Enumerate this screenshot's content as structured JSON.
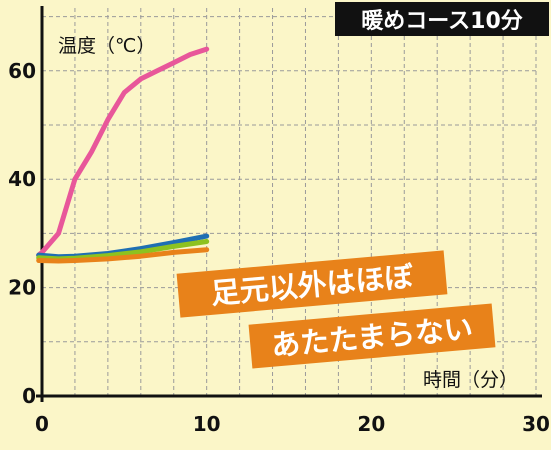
{
  "title": "暖めコース10分",
  "callout": {
    "line1": "足元以外はほぼ",
    "line2": "あたたまらない"
  },
  "colors": {
    "background": "#fbf6c8",
    "title_bg": "#111111",
    "callout_bg": "#e8821a",
    "grid": "#9a9a9a"
  },
  "chart_data": {
    "type": "line",
    "title": "暖めコース10分",
    "xlabel": "時間（分）",
    "ylabel": "温度（℃）",
    "xlim": [
      0,
      30
    ],
    "ylim": [
      0,
      70
    ],
    "x_ticks": [
      "0",
      "10",
      "20",
      "30"
    ],
    "y_ticks": [
      "0",
      "20",
      "40",
      "60"
    ],
    "grid": true,
    "series": [
      {
        "color": "#e8579a",
        "points": [
          [
            -0.2,
            26
          ],
          [
            0,
            26.5
          ],
          [
            1,
            30
          ],
          [
            2,
            40
          ],
          [
            3,
            45
          ],
          [
            4,
            51
          ],
          [
            5,
            56
          ],
          [
            6,
            58.5
          ],
          [
            7,
            60
          ],
          [
            8,
            61.5
          ],
          [
            9,
            63
          ],
          [
            10,
            64
          ]
        ]
      },
      {
        "color": "#1f6fb3",
        "points": [
          [
            -0.2,
            26
          ],
          [
            1,
            25.7
          ],
          [
            2,
            25.8
          ],
          [
            4,
            26.3
          ],
          [
            6,
            27.2
          ],
          [
            8,
            28.3
          ],
          [
            10,
            29.5
          ]
        ]
      },
      {
        "color": "#8dc21f",
        "points": [
          [
            -0.2,
            25.5
          ],
          [
            1,
            25.3
          ],
          [
            2,
            25.4
          ],
          [
            4,
            25.9
          ],
          [
            6,
            26.6
          ],
          [
            8,
            27.6
          ],
          [
            10,
            28.5
          ]
        ]
      },
      {
        "color": "#e8821a",
        "points": [
          [
            -0.2,
            25
          ],
          [
            1,
            24.9
          ],
          [
            2,
            25
          ],
          [
            4,
            25.3
          ],
          [
            6,
            25.8
          ],
          [
            8,
            26.5
          ],
          [
            10,
            27
          ]
        ]
      }
    ]
  }
}
